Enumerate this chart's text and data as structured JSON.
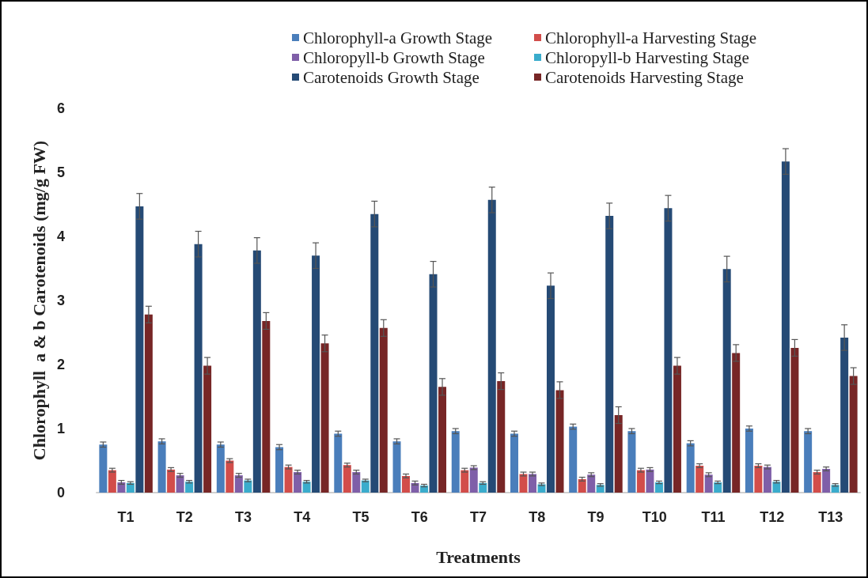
{
  "chart_data": {
    "type": "bar",
    "xlabel": "Treatments",
    "ylabel": "Chlorophyll  a & b Carotenoids (mg/g FW)",
    "categories": [
      "T1",
      "T2",
      "T3",
      "T4",
      "T5",
      "T6",
      "T7",
      "T8",
      "T9",
      "T10",
      "T11",
      "T12",
      "T13"
    ],
    "series": [
      {
        "name": "Chlorophyll-a Growth Stage",
        "color": "#4a7ebb",
        "values": [
          0.75,
          0.8,
          0.75,
          0.71,
          0.92,
          0.8,
          0.96,
          0.92,
          1.03,
          0.96,
          0.77,
          1.0,
          0.96
        ],
        "errors": [
          0.04,
          0.04,
          0.04,
          0.04,
          0.04,
          0.04,
          0.04,
          0.04,
          0.04,
          0.04,
          0.04,
          0.04,
          0.04
        ]
      },
      {
        "name": "Chlorophyll-a Harvesting Stage",
        "color": "#d24d4a",
        "values": [
          0.35,
          0.36,
          0.5,
          0.4,
          0.43,
          0.26,
          0.35,
          0.29,
          0.21,
          0.35,
          0.42,
          0.42,
          0.32
        ],
        "errors": [
          0.03,
          0.03,
          0.03,
          0.03,
          0.03,
          0.03,
          0.03,
          0.03,
          0.03,
          0.03,
          0.03,
          0.03,
          0.03
        ]
      },
      {
        "name": "Chloropyll-b Growth Stage",
        "color": "#7f5fa8",
        "values": [
          0.16,
          0.27,
          0.27,
          0.32,
          0.32,
          0.15,
          0.39,
          0.29,
          0.28,
          0.36,
          0.28,
          0.4,
          0.37
        ],
        "errors": [
          0.03,
          0.03,
          0.03,
          0.03,
          0.03,
          0.03,
          0.03,
          0.03,
          0.03,
          0.03,
          0.03,
          0.03,
          0.03
        ]
      },
      {
        "name": "Chloropyll-b Harvesting Stage",
        "color": "#3aaccc",
        "values": [
          0.15,
          0.17,
          0.19,
          0.17,
          0.19,
          0.11,
          0.15,
          0.13,
          0.12,
          0.16,
          0.16,
          0.17,
          0.12
        ],
        "errors": [
          0.02,
          0.02,
          0.02,
          0.02,
          0.02,
          0.02,
          0.02,
          0.02,
          0.02,
          0.02,
          0.02,
          0.02,
          0.02
        ]
      },
      {
        "name": "Carotenoids Growth Stage",
        "color": "#254a75",
        "values": [
          4.47,
          3.88,
          3.78,
          3.7,
          4.35,
          3.41,
          4.57,
          3.23,
          4.32,
          4.44,
          3.49,
          5.17,
          2.42
        ],
        "errors": [
          0.2,
          0.2,
          0.2,
          0.2,
          0.2,
          0.2,
          0.2,
          0.2,
          0.2,
          0.2,
          0.2,
          0.2,
          0.2
        ]
      },
      {
        "name": "Carotenoids Harvesting Stage",
        "color": "#772626",
        "values": [
          2.78,
          1.98,
          2.68,
          2.33,
          2.57,
          1.65,
          1.74,
          1.6,
          1.21,
          1.98,
          2.18,
          2.26,
          1.82
        ],
        "errors": [
          0.13,
          0.13,
          0.13,
          0.13,
          0.13,
          0.13,
          0.13,
          0.13,
          0.13,
          0.13,
          0.13,
          0.13,
          0.13
        ]
      }
    ],
    "ylim": [
      0,
      6
    ],
    "yticks": [
      0,
      1,
      2,
      3,
      4,
      5,
      6
    ],
    "grid": false,
    "legend": "top"
  }
}
